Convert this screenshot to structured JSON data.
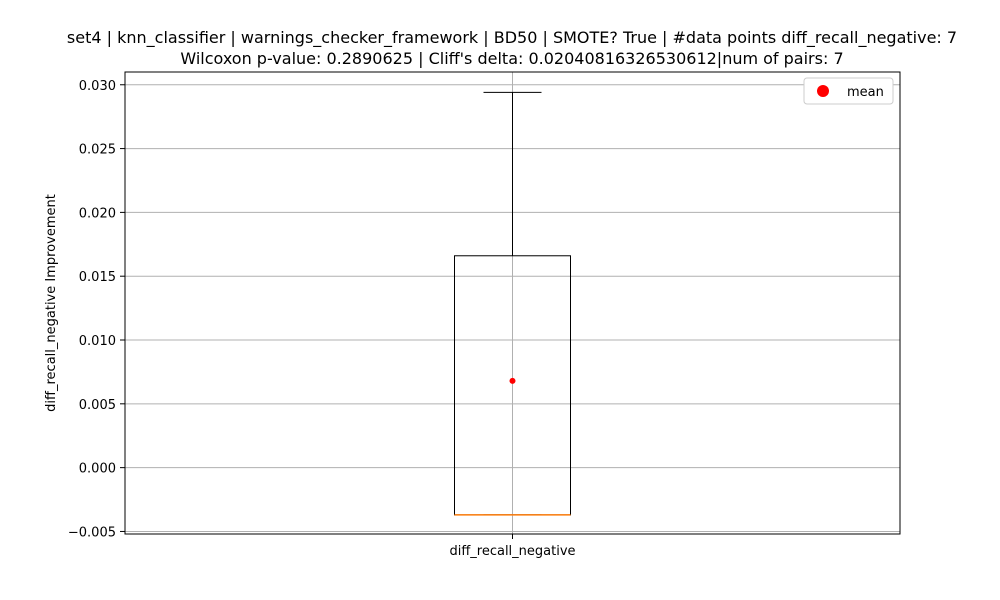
{
  "chart_data": {
    "type": "box",
    "title_lines": [
      "set4 | knn_classifier | warnings_checker_framework | BD50 | SMOTE? True | #data points diff_recall_negative: 7",
      "Wilcoxon p-value: 0.2890625 | Cliff's delta: 0.02040816326530612|num of pairs: 7"
    ],
    "xlabel": "",
    "ylabel": "diff_recall_negative Improvement",
    "categories": [
      "diff_recall_negative"
    ],
    "ylim": [
      -0.0052,
      0.031
    ],
    "yticks": [
      -0.005,
      0.0,
      0.005,
      0.01,
      0.015,
      0.02,
      0.025,
      0.03
    ],
    "ytick_labels": [
      "−0.005",
      "0.000",
      "0.005",
      "0.010",
      "0.015",
      "0.020",
      "0.025",
      "0.030"
    ],
    "grid": true,
    "legend": {
      "position": "upper right",
      "entries": [
        {
          "label": "mean",
          "marker": "circle",
          "color": "#ff0000"
        }
      ]
    },
    "boxes": [
      {
        "category": "diff_recall_negative",
        "whisker_low": -0.0037,
        "q1": -0.0037,
        "median": -0.0037,
        "q3": 0.0166,
        "whisker_high": 0.0294,
        "mean": 0.0068
      }
    ],
    "colors": {
      "box": "#000000",
      "median": "#ff7f0e",
      "mean": "#ff0000",
      "grid": "#b0b0b0"
    }
  }
}
